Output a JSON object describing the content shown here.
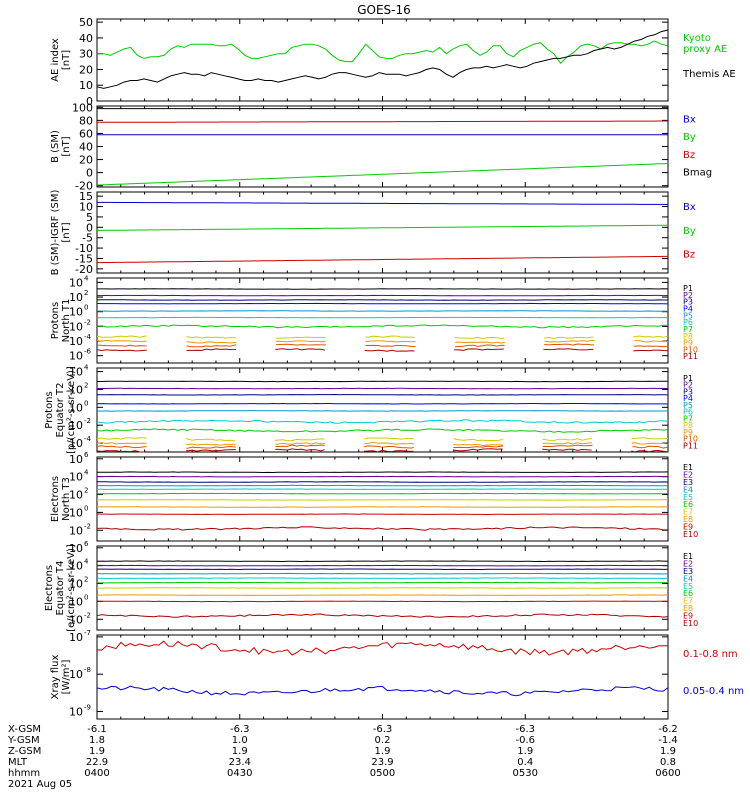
{
  "title": "GOES-16",
  "colors": {
    "black": "#000000",
    "blue": "#0000cc",
    "green": "#00cc00",
    "red": "#cc0000",
    "purple": "#660099",
    "darkblue": "#00007f",
    "navy": "#0000ff",
    "teal": "#0099cc",
    "cyan": "#00cccc",
    "ltgreen": "#33dd88",
    "yellow": "#cccc00",
    "orange": "#ee9900",
    "darkorange": "#dd5500",
    "maroon": "#aa0000"
  },
  "chart_data": [
    {
      "type": "line",
      "id": "ae",
      "ylabel_lines": [
        "AE index",
        "[nT]"
      ],
      "yticks": [
        0,
        10,
        20,
        30,
        40,
        50
      ],
      "ylim": [
        0,
        52
      ],
      "log": false,
      "series": [
        {
          "name": "Kyoto proxy AE",
          "label_lines": [
            "Kyoto",
            "proxy AE"
          ],
          "color": "#00cc00",
          "y": [
            30,
            30,
            29,
            31,
            33,
            34,
            29,
            27,
            28,
            28,
            29,
            33,
            35,
            34,
            36,
            36,
            36,
            36,
            35,
            35,
            36,
            33,
            29,
            27,
            27,
            28,
            29,
            30,
            30,
            34,
            35,
            36,
            36,
            35,
            33,
            29,
            26,
            25,
            25,
            30,
            36,
            32,
            28,
            27,
            27,
            29,
            30,
            30,
            31,
            32,
            31,
            34,
            30,
            33,
            35,
            36,
            32,
            29,
            31,
            35,
            35,
            30,
            28,
            32,
            34,
            36,
            37,
            33,
            30,
            24,
            28,
            31,
            35,
            36,
            35,
            33,
            36,
            37,
            37,
            36,
            36,
            35,
            36,
            38,
            36,
            35
          ]
        },
        {
          "name": "Themis AE",
          "label_lines": [
            "Themis AE"
          ],
          "color": "#000000",
          "y": [
            9,
            8,
            9,
            10,
            12,
            13,
            13,
            14,
            13,
            12,
            14,
            16,
            17,
            18,
            17,
            17,
            16,
            18,
            17,
            16,
            15,
            14,
            13,
            13,
            14,
            13,
            13,
            12,
            13,
            14,
            15,
            16,
            15,
            14,
            15,
            17,
            18,
            18,
            17,
            16,
            15,
            16,
            18,
            17,
            17,
            17,
            16,
            17,
            18,
            20,
            21,
            20,
            17,
            15,
            18,
            20,
            21,
            21,
            22,
            21,
            22,
            23,
            22,
            21,
            22,
            24,
            25,
            26,
            27,
            27,
            28,
            29,
            29,
            30,
            32,
            33,
            34,
            33,
            34,
            36,
            38,
            39,
            41,
            42,
            44,
            45
          ]
        }
      ]
    },
    {
      "type": "line",
      "id": "bsm",
      "ylabel_lines": [
        "B (SM)",
        "[nT]"
      ],
      "yticks": [
        -20,
        0,
        20,
        40,
        60,
        80,
        100
      ],
      "ylim": [
        -22,
        102
      ],
      "log": false,
      "series": [
        {
          "name": "Bx",
          "color": "#0000cc",
          "start": 58,
          "end": 58
        },
        {
          "name": "By",
          "color": "#00cc00",
          "start": -19,
          "end": 14
        },
        {
          "name": "Bz",
          "color": "#cc0000",
          "start": 77,
          "end": 79
        },
        {
          "name": "Bmag",
          "color": "#000000",
          "start": 98,
          "end": 98
        }
      ]
    },
    {
      "type": "line",
      "id": "bigrf",
      "ylabel_lines": [
        "B (SM)-IGRF (SM)",
        "[nT]"
      ],
      "yticks": [
        -20,
        -15,
        -10,
        -5,
        0,
        5,
        10,
        15
      ],
      "ylim": [
        -22,
        17
      ],
      "log": false,
      "series": [
        {
          "name": "Bx",
          "color": "#0000cc",
          "start": 12,
          "end": 11
        },
        {
          "name": "By",
          "color": "#00cc00",
          "start": -1.5,
          "end": 1
        },
        {
          "name": "Bz",
          "color": "#cc0000",
          "start": -17,
          "end": -14
        }
      ]
    },
    {
      "type": "line",
      "id": "pnt1",
      "ylabel_lines": [
        "Protons",
        "North T1"
      ],
      "yticks": [
        4,
        2,
        0,
        -2,
        -4,
        -6
      ],
      "ytick_labels": [
        "10",
        "10",
        "10",
        "10",
        "10",
        "10"
      ],
      "yexp": [
        "4",
        "2",
        "0",
        "-2",
        "-4",
        "-6"
      ],
      "ylim": [
        -7,
        4.6
      ],
      "log": true,
      "series": [
        {
          "name": "P1",
          "color": "#000000",
          "logv": 3.1
        },
        {
          "name": "P2",
          "color": "#660099",
          "logv": 2.2
        },
        {
          "name": "P3",
          "color": "#00007f",
          "logv": 1.6
        },
        {
          "name": "P4",
          "color": "#0000ff",
          "logv": 1.1
        },
        {
          "name": "P5",
          "color": "#0099cc",
          "logv": 0.1
        },
        {
          "name": "P6",
          "color": "#00cccc",
          "logv": -0.8
        },
        {
          "name": "P7",
          "color": "#00cc00",
          "logv": -2.0
        },
        {
          "name": "P8",
          "color": "#cccc00",
          "logv": -3.5
        },
        {
          "name": "P9",
          "color": "#ee9900",
          "logv": -4.1
        },
        {
          "name": "P10",
          "color": "#dd5500",
          "logv": -4.6
        },
        {
          "name": "P11",
          "color": "#aa0000",
          "logv": -5.2
        }
      ]
    },
    {
      "type": "line",
      "id": "pet2",
      "ylabel_lines": [
        "Protons",
        "Equator T2",
        "[p/(cm²-s-sr-keV)]"
      ],
      "yticks": [
        4,
        2,
        0,
        -2,
        -4
      ],
      "ytick_labels": [
        "10",
        "10",
        "10",
        "10",
        "10"
      ],
      "yexp": [
        "4",
        "2",
        "0",
        "-2",
        "-4"
      ],
      "ylim": [
        -5,
        4.4
      ],
      "log": true,
      "series": [
        {
          "name": "P1",
          "color": "#000000",
          "logv": 2.9
        },
        {
          "name": "P2",
          "color": "#660099",
          "logv": 2.1
        },
        {
          "name": "P3",
          "color": "#00007f",
          "logv": 1.4
        },
        {
          "name": "P4",
          "color": "#0000ff",
          "logv": 0.4
        },
        {
          "name": "P5",
          "color": "#0099cc",
          "logv": -0.4
        },
        {
          "name": "P6",
          "color": "#00cccc",
          "logv": -1.6
        },
        {
          "name": "P7",
          "color": "#00cc00",
          "logv": -2.6
        },
        {
          "name": "P8",
          "color": "#cccc00",
          "logv": -3.6
        },
        {
          "name": "P9",
          "color": "#ee9900",
          "logv": -4.1
        },
        {
          "name": "P10",
          "color": "#dd5500",
          "logv": -4.4
        },
        {
          "name": "P11",
          "color": "#aa0000",
          "logv": -4.8
        }
      ]
    },
    {
      "type": "line",
      "id": "ent3",
      "ylabel_lines": [
        "Electrons",
        "North T3"
      ],
      "yticks": [
        6,
        4,
        2,
        0,
        -2
      ],
      "ytick_labels": [
        "10",
        "10",
        "10",
        "10",
        "10"
      ],
      "yexp": [
        "6",
        "4",
        "2",
        "0",
        "-2"
      ],
      "ylim": [
        -3.2,
        6.2
      ],
      "log": true,
      "series": [
        {
          "name": "E1",
          "color": "#000000",
          "logv": 4.5
        },
        {
          "name": "E2",
          "color": "#660099",
          "logv": 4.0
        },
        {
          "name": "E3",
          "color": "#00007f",
          "logv": 3.4
        },
        {
          "name": "E4",
          "color": "#0099cc",
          "logv": 3.0
        },
        {
          "name": "E5",
          "color": "#00cccc",
          "logv": 2.6
        },
        {
          "name": "E6",
          "color": "#00cc00",
          "logv": 2.1
        },
        {
          "name": "E7",
          "color": "#cccc00",
          "logv": 1.4
        },
        {
          "name": "E8",
          "color": "#ee9900",
          "logv": 0.6
        },
        {
          "name": "E9",
          "color": "#cc0000",
          "logv": -0.2
        },
        {
          "name": "E10",
          "color": "#aa0000",
          "logv": -1.8
        }
      ]
    },
    {
      "type": "line",
      "id": "eet4",
      "ylabel_lines": [
        "Electrons",
        "Equator T4",
        "[e/(cm²-s-sr-keV)]"
      ],
      "yticks": [
        6,
        4,
        2,
        0,
        -2
      ],
      "ytick_labels": [
        "10",
        "10",
        "10",
        "10",
        "10"
      ],
      "yexp": [
        "6",
        "4",
        "2",
        "0",
        "-2"
      ],
      "ylim": [
        -3.2,
        6.2
      ],
      "log": true,
      "series": [
        {
          "name": "E1",
          "color": "#000000",
          "logv": 4.5
        },
        {
          "name": "E2",
          "color": "#660099",
          "logv": 4.0
        },
        {
          "name": "E3",
          "color": "#00007f",
          "logv": 3.6
        },
        {
          "name": "E4",
          "color": "#0099cc",
          "logv": 3.1
        },
        {
          "name": "E5",
          "color": "#00cccc",
          "logv": 2.6
        },
        {
          "name": "E6",
          "color": "#00cc00",
          "logv": 2.1
        },
        {
          "name": "E7",
          "color": "#cccc00",
          "logv": 1.5
        },
        {
          "name": "E8",
          "color": "#ee9900",
          "logv": 0.7
        },
        {
          "name": "E9",
          "color": "#cc0000",
          "logv": 0.0
        },
        {
          "name": "E10",
          "color": "#aa0000",
          "logv": -1.6
        }
      ]
    },
    {
      "type": "line",
      "id": "xray",
      "ylabel_lines": [
        "Xray flux",
        "[W/m²]"
      ],
      "yticks": [
        -7,
        -8,
        -9
      ],
      "ytick_labels": [
        "10",
        "10",
        "10"
      ],
      "yexp": [
        "-7",
        "-8",
        "-9"
      ],
      "ylim": [
        -9.2,
        -6.95
      ],
      "log": true,
      "series": [
        {
          "name": "0.1-0.8 nm",
          "color": "#cc0000",
          "logv": -7.3
        },
        {
          "name": "0.05-0.4 nm",
          "color": "#0000cc",
          "logv": -8.45
        }
      ]
    }
  ],
  "xaxis": {
    "ticks": [
      "0400",
      "0430",
      "0500",
      "0530",
      "0600"
    ],
    "rows": [
      {
        "label": "X-GSM",
        "values": [
          "-6.1",
          "-6.3",
          "-6.3",
          "-6.3",
          "-6.2"
        ]
      },
      {
        "label": "Y-GSM",
        "values": [
          "1.8",
          "1.0",
          "0.2",
          "-0.6",
          "-1.4"
        ]
      },
      {
        "label": "Z-GSM",
        "values": [
          "1.9",
          "1.9",
          "1.9",
          "1.9",
          "1.9"
        ]
      },
      {
        "label": "MLT",
        "values": [
          "22.9",
          "23.4",
          "23.9",
          "0.4",
          "0.8"
        ]
      },
      {
        "label": "hhmm",
        "values": [
          "0400",
          "0430",
          "0500",
          "0530",
          "0600"
        ]
      }
    ],
    "date": "2021 Aug 05"
  }
}
